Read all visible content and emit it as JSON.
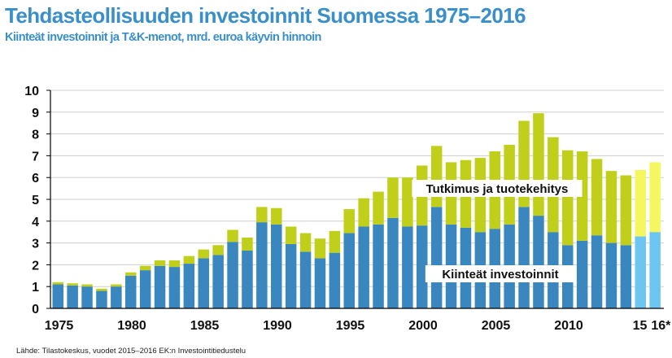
{
  "title": "Tehdasteollisuuden investoinnit Suomessa 1975–2016",
  "subtitle": "Kiinteät investoinnit ja T&K-menot, mrd. euroa käyvin hinnoin",
  "source": "Lähde: Tilastokeskus, vuodet 2015–2016 EK:n Investointitiedustelu",
  "colors": {
    "fixed": "#3a87c0",
    "rd": "#bfcf1a",
    "fixed_forecast": "#6cc6f0",
    "rd_forecast": "#f4f760"
  },
  "chart_data": {
    "type": "bar",
    "stacked": true,
    "ylim": [
      0,
      10
    ],
    "yticks": [
      0,
      1,
      2,
      3,
      4,
      5,
      6,
      7,
      8,
      9,
      10
    ],
    "xtick_labels": [
      "1975",
      "1980",
      "1985",
      "1990",
      "1995",
      "2000",
      "2005",
      "2010",
      "15",
      "16*"
    ],
    "labels": {
      "rd": "Tutkimus ja tuotekehitys",
      "fixed": "Kiinteät investoinnit"
    },
    "years": [
      1975,
      1976,
      1977,
      1978,
      1979,
      1980,
      1981,
      1982,
      1983,
      1984,
      1985,
      1986,
      1987,
      1988,
      1989,
      1990,
      1991,
      1992,
      1993,
      1994,
      1995,
      1996,
      1997,
      1998,
      1999,
      2000,
      2001,
      2002,
      2003,
      2004,
      2005,
      2006,
      2007,
      2008,
      2009,
      2010,
      2011,
      2012,
      2013,
      2014,
      2015,
      2016
    ],
    "forecast_years": [
      2015,
      2016
    ],
    "series": [
      {
        "name": "Kiinteät investoinnit",
        "values": [
          1.1,
          1.05,
          1.0,
          0.8,
          1.0,
          1.5,
          1.75,
          1.95,
          1.9,
          2.05,
          2.3,
          2.45,
          3.05,
          2.65,
          3.95,
          3.85,
          2.95,
          2.6,
          2.3,
          2.55,
          3.45,
          3.75,
          3.85,
          4.15,
          3.75,
          3.8,
          4.65,
          3.85,
          3.7,
          3.5,
          3.65,
          3.85,
          4.65,
          4.25,
          3.5,
          2.9,
          3.1,
          3.35,
          3.0,
          2.9,
          3.3,
          3.5
        ]
      },
      {
        "name": "Tutkimus ja tuotekehitys",
        "values": [
          0.1,
          0.1,
          0.1,
          0.1,
          0.1,
          0.15,
          0.2,
          0.25,
          0.3,
          0.35,
          0.4,
          0.45,
          0.55,
          0.6,
          0.7,
          0.75,
          0.8,
          0.85,
          0.9,
          1.0,
          1.1,
          1.3,
          1.5,
          1.85,
          2.25,
          2.75,
          2.8,
          2.85,
          3.1,
          3.4,
          3.55,
          3.65,
          3.95,
          4.7,
          4.35,
          4.35,
          4.1,
          3.5,
          3.3,
          3.2,
          3.05,
          3.2
        ]
      }
    ]
  }
}
